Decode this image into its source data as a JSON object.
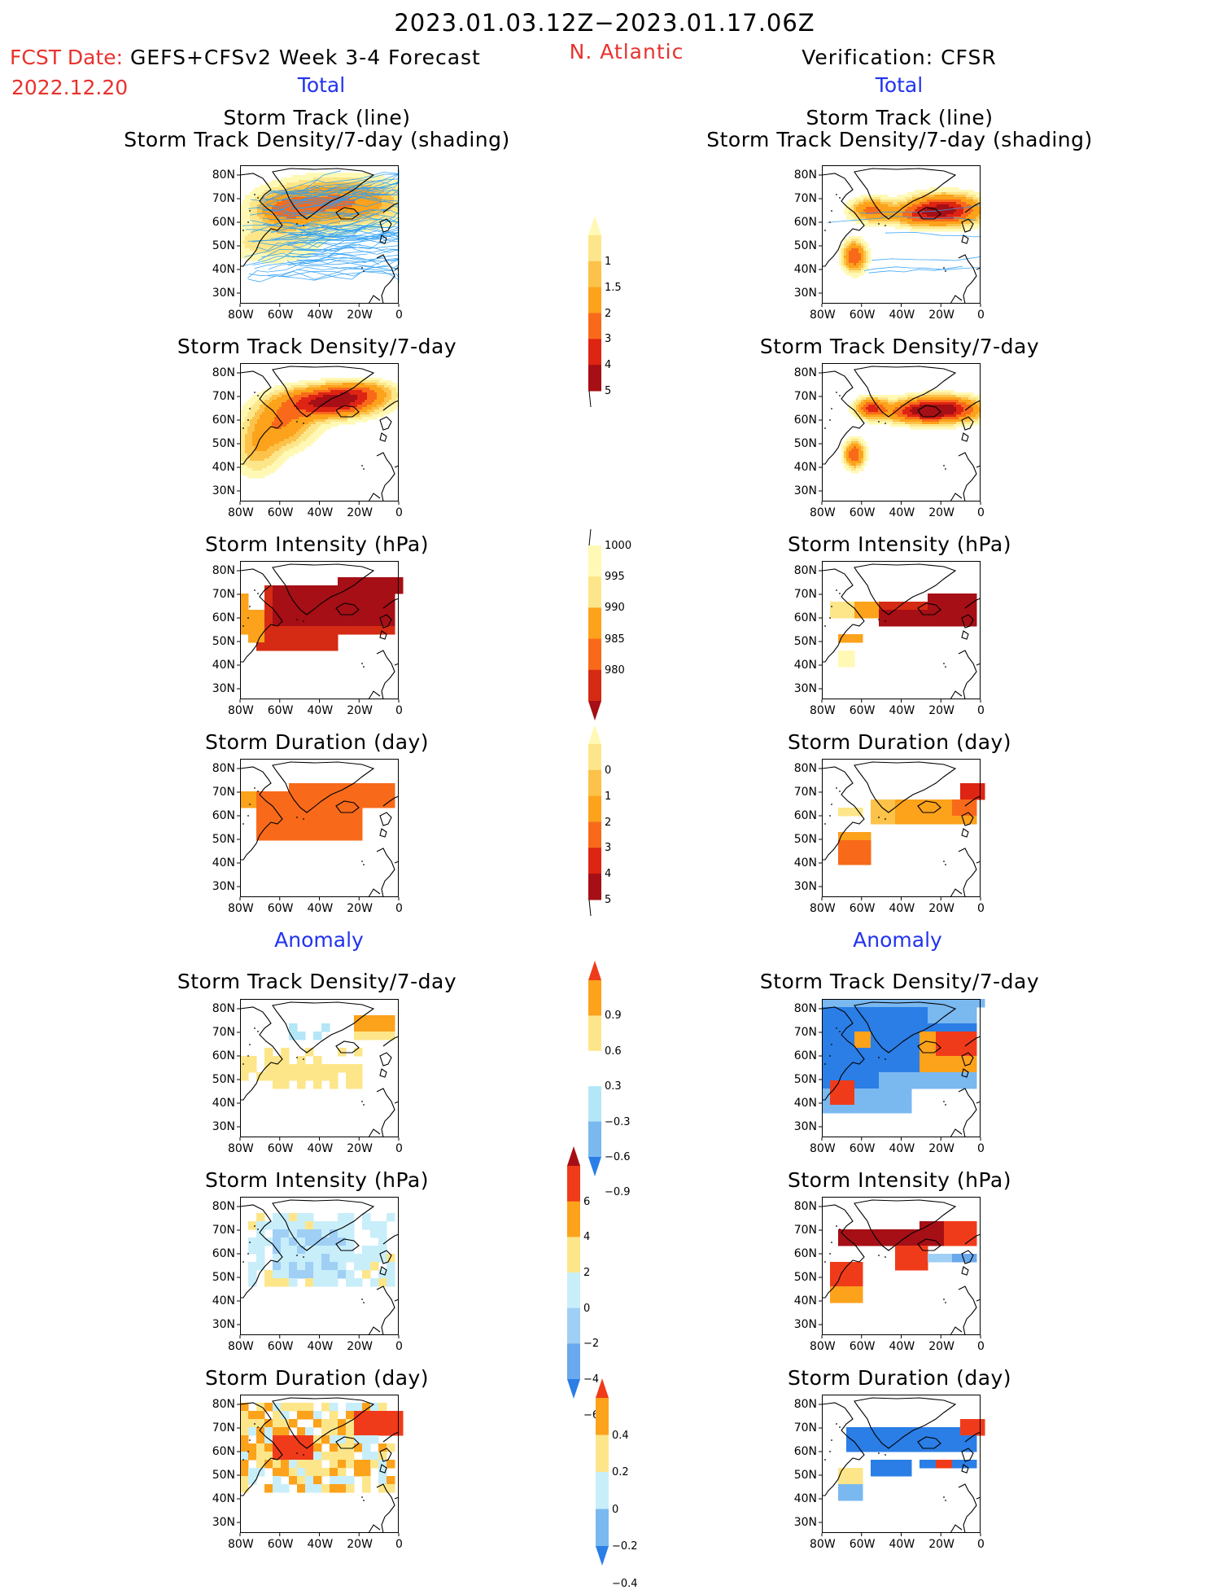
{
  "header": {
    "date_range": "2023.01.03.12Z−2023.01.17.06Z",
    "fcst_date_label": "FCST Date:",
    "fcst_model": "GEFS+CFSv2 Week 3-4 Forecast",
    "fcst_date": "2022.12.20",
    "region": "N. Atlantic",
    "verification": "Verification: CFSR",
    "left_total": "Total",
    "right_total": "Total",
    "left_anomaly": "Anomaly",
    "right_anomaly": "Anomaly"
  },
  "panel_titles": {
    "track_line": "Storm Track (line)",
    "track_shading": "Storm Track Density/7-day (shading)",
    "density": "Storm Track Density/7-day",
    "intensity": "Storm Intensity (hPa)",
    "duration": "Storm Duration (day)"
  },
  "axes": {
    "lat_ticks": [
      "80N",
      "70N",
      "60N",
      "50N",
      "40N",
      "30N"
    ],
    "lon_ticks": [
      "80W",
      "60W",
      "40W",
      "20W",
      "0"
    ]
  },
  "colors": {
    "red_text": "#e8322d",
    "blue_text": "#2233ee",
    "track_line": "#2a9df4",
    "coast": "#000000"
  },
  "chart_data": [
    {
      "type": "heatmap",
      "id": "density-colorbar",
      "levels": [
        "1",
        "1.5",
        "2",
        "3",
        "4",
        "5"
      ],
      "colors": [
        "#fff9b5",
        "#fde68a",
        "#fcc24a",
        "#fca21b",
        "#f86a1a",
        "#de2413",
        "#a50f15"
      ]
    },
    {
      "type": "heatmap",
      "id": "intensity-colorbar",
      "levels": [
        "1000",
        "995",
        "990",
        "985",
        "980"
      ],
      "colors": [
        "#fff9b5",
        "#fde68a",
        "#fca21b",
        "#f86a1a",
        "#d52a13",
        "#a50f15"
      ]
    },
    {
      "type": "heatmap",
      "id": "duration-colorbar",
      "levels": [
        "0",
        "1",
        "2",
        "3",
        "4",
        "5"
      ],
      "colors": [
        "#fff9b5",
        "#fde68a",
        "#fcc24a",
        "#fca21b",
        "#f86a1a",
        "#de2413",
        "#a50f15"
      ]
    },
    {
      "type": "heatmap",
      "id": "density-anomaly-colorbar",
      "levels": [
        "0.9",
        "0.6",
        "0.3",
        "−0.3",
        "−0.6",
        "−0.9"
      ],
      "colors": [
        "#f03b1a",
        "#fca21b",
        "#fde68a",
        "#ffffff",
        "#b3e6f7",
        "#7ab8f0",
        "#2a7ee6"
      ]
    },
    {
      "type": "heatmap",
      "id": "intensity-anomaly-colorbar",
      "levels": [
        "6",
        "4",
        "2",
        "0",
        "−2",
        "−4",
        "−6"
      ],
      "colors": [
        "#a50f15",
        "#f03b1a",
        "#fca21b",
        "#fde68a",
        "#c8eefa",
        "#9fcff5",
        "#6aa9ee",
        "#2a7ee6"
      ]
    },
    {
      "type": "heatmap",
      "id": "duration-anomaly-colorbar",
      "levels": [
        "0.4",
        "0.2",
        "0",
        "−0.2",
        "−0.4"
      ],
      "colors": [
        "#f03b1a",
        "#fca21b",
        "#fde68a",
        "#c8eefa",
        "#7ab8f0",
        "#2a7ee6"
      ]
    }
  ]
}
